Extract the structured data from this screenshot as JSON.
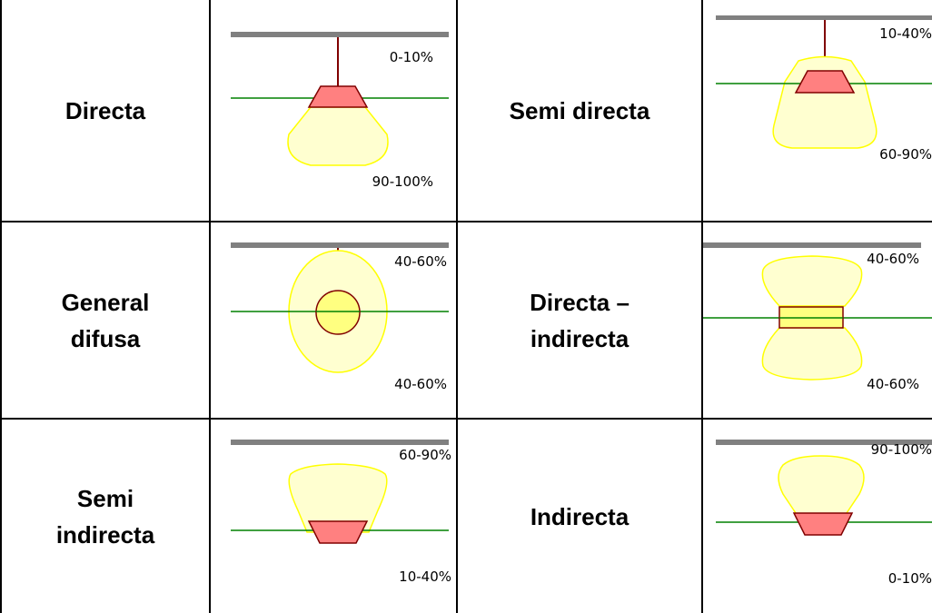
{
  "rows": [
    {
      "left": {
        "label_lines": [
          "Directa"
        ],
        "top_pct": "0-10%",
        "bottom_pct": "90-100%"
      },
      "right": {
        "label_lines": [
          "Semi directa"
        ],
        "top_pct": "10-40%",
        "bottom_pct": "60-90%"
      }
    },
    {
      "left": {
        "label_lines": [
          "General",
          "difusa"
        ],
        "top_pct": "40-60%",
        "bottom_pct": "40-60%"
      },
      "right": {
        "label_lines": [
          "Directa –",
          "indirecta"
        ],
        "top_pct": "40-60%",
        "bottom_pct": "40-60%"
      }
    },
    {
      "left": {
        "label_lines": [
          "Semi",
          "indirecta"
        ],
        "top_pct": "60-90%",
        "bottom_pct": "10-40%"
      },
      "right": {
        "label_lines": [
          "Indirecta"
        ],
        "top_pct": "90-100%",
        "bottom_pct": "0-10%"
      }
    }
  ],
  "colors": {
    "border": "#000000",
    "ceiling": "#808080",
    "cord": "#800000",
    "fixture_fill": "#ff8080",
    "globe_fill": "#ffff80",
    "light_fill": "#ffffd0",
    "light_stroke": "#ffff00",
    "horizon": "#008000"
  }
}
